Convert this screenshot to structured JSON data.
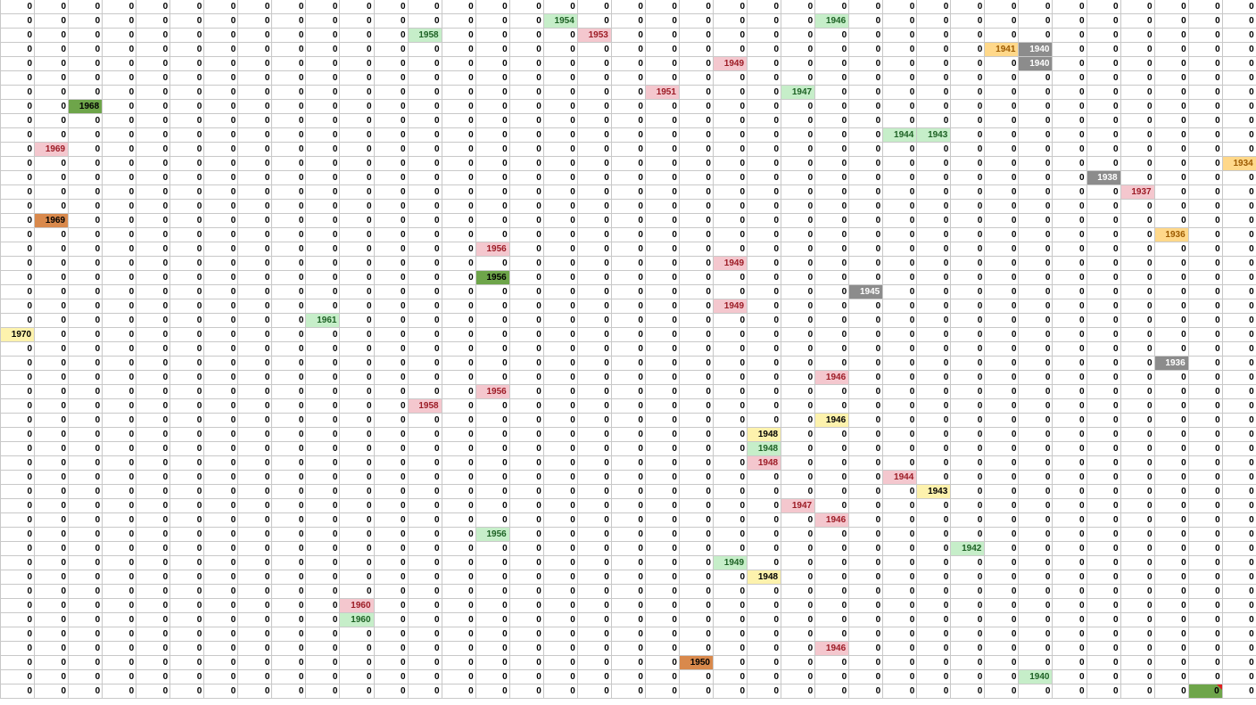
{
  "sheet": {
    "default_value": "0",
    "rows": 49,
    "cols": 37,
    "highlights": [
      {
        "row": 1,
        "col": 16,
        "value": "1954",
        "style": "green"
      },
      {
        "row": 1,
        "col": 24,
        "value": "1946",
        "style": "green"
      },
      {
        "row": 2,
        "col": 12,
        "value": "1958",
        "style": "green"
      },
      {
        "row": 2,
        "col": 17,
        "value": "1953",
        "style": "red"
      },
      {
        "row": 3,
        "col": 29,
        "value": "1941",
        "style": "orange"
      },
      {
        "row": 3,
        "col": 30,
        "value": "1940",
        "style": "gray"
      },
      {
        "row": 4,
        "col": 21,
        "value": "1949",
        "style": "red"
      },
      {
        "row": 4,
        "col": 30,
        "value": "1940",
        "style": "gray"
      },
      {
        "row": 6,
        "col": 19,
        "value": "1951",
        "style": "red"
      },
      {
        "row": 6,
        "col": 23,
        "value": "1947",
        "style": "green"
      },
      {
        "row": 7,
        "col": 2,
        "value": "1968",
        "style": "dgreen"
      },
      {
        "row": 9,
        "col": 26,
        "value": "1944",
        "style": "green"
      },
      {
        "row": 9,
        "col": 27,
        "value": "1943",
        "style": "green"
      },
      {
        "row": 10,
        "col": 1,
        "value": "1969",
        "style": "red"
      },
      {
        "row": 11,
        "col": 36,
        "value": "1934",
        "style": "orange"
      },
      {
        "row": 12,
        "col": 32,
        "value": "1938",
        "style": "gray"
      },
      {
        "row": 13,
        "col": 33,
        "value": "1937",
        "style": "red"
      },
      {
        "row": 15,
        "col": 1,
        "value": "1969",
        "style": "brown"
      },
      {
        "row": 16,
        "col": 34,
        "value": "1936",
        "style": "orange"
      },
      {
        "row": 17,
        "col": 14,
        "value": "1956",
        "style": "red"
      },
      {
        "row": 18,
        "col": 21,
        "value": "1949",
        "style": "red"
      },
      {
        "row": 19,
        "col": 14,
        "value": "1956",
        "style": "dgreen"
      },
      {
        "row": 20,
        "col": 25,
        "value": "1945",
        "style": "gray"
      },
      {
        "row": 21,
        "col": 21,
        "value": "1949",
        "style": "red"
      },
      {
        "row": 22,
        "col": 9,
        "value": "1961",
        "style": "green"
      },
      {
        "row": 23,
        "col": 0,
        "value": "1970",
        "style": "yellow"
      },
      {
        "row": 25,
        "col": 34,
        "value": "1936",
        "style": "gray"
      },
      {
        "row": 26,
        "col": 24,
        "value": "1946",
        "style": "red"
      },
      {
        "row": 27,
        "col": 14,
        "value": "1956",
        "style": "red"
      },
      {
        "row": 28,
        "col": 12,
        "value": "1958",
        "style": "red"
      },
      {
        "row": 29,
        "col": 24,
        "value": "1946",
        "style": "yellow"
      },
      {
        "row": 30,
        "col": 22,
        "value": "1948",
        "style": "yellow"
      },
      {
        "row": 31,
        "col": 22,
        "value": "1948",
        "style": "green"
      },
      {
        "row": 32,
        "col": 22,
        "value": "1948",
        "style": "red"
      },
      {
        "row": 33,
        "col": 26,
        "value": "1944",
        "style": "red"
      },
      {
        "row": 34,
        "col": 27,
        "value": "1943",
        "style": "yellow"
      },
      {
        "row": 35,
        "col": 23,
        "value": "1947",
        "style": "red"
      },
      {
        "row": 36,
        "col": 24,
        "value": "1946",
        "style": "red"
      },
      {
        "row": 37,
        "col": 14,
        "value": "1956",
        "style": "green"
      },
      {
        "row": 38,
        "col": 28,
        "value": "1942",
        "style": "green"
      },
      {
        "row": 39,
        "col": 21,
        "value": "1949",
        "style": "green"
      },
      {
        "row": 40,
        "col": 22,
        "value": "1948",
        "style": "yellow"
      },
      {
        "row": 42,
        "col": 10,
        "value": "1960",
        "style": "red"
      },
      {
        "row": 43,
        "col": 10,
        "value": "1960",
        "style": "green"
      },
      {
        "row": 45,
        "col": 24,
        "value": "1946",
        "style": "red"
      },
      {
        "row": 46,
        "col": 20,
        "value": "1950",
        "style": "brown"
      },
      {
        "row": 47,
        "col": 30,
        "value": "1940",
        "style": "green"
      },
      {
        "row": 48,
        "col": 35,
        "value": "0",
        "style": "dgreen",
        "selected": true,
        "comment": true
      }
    ]
  }
}
